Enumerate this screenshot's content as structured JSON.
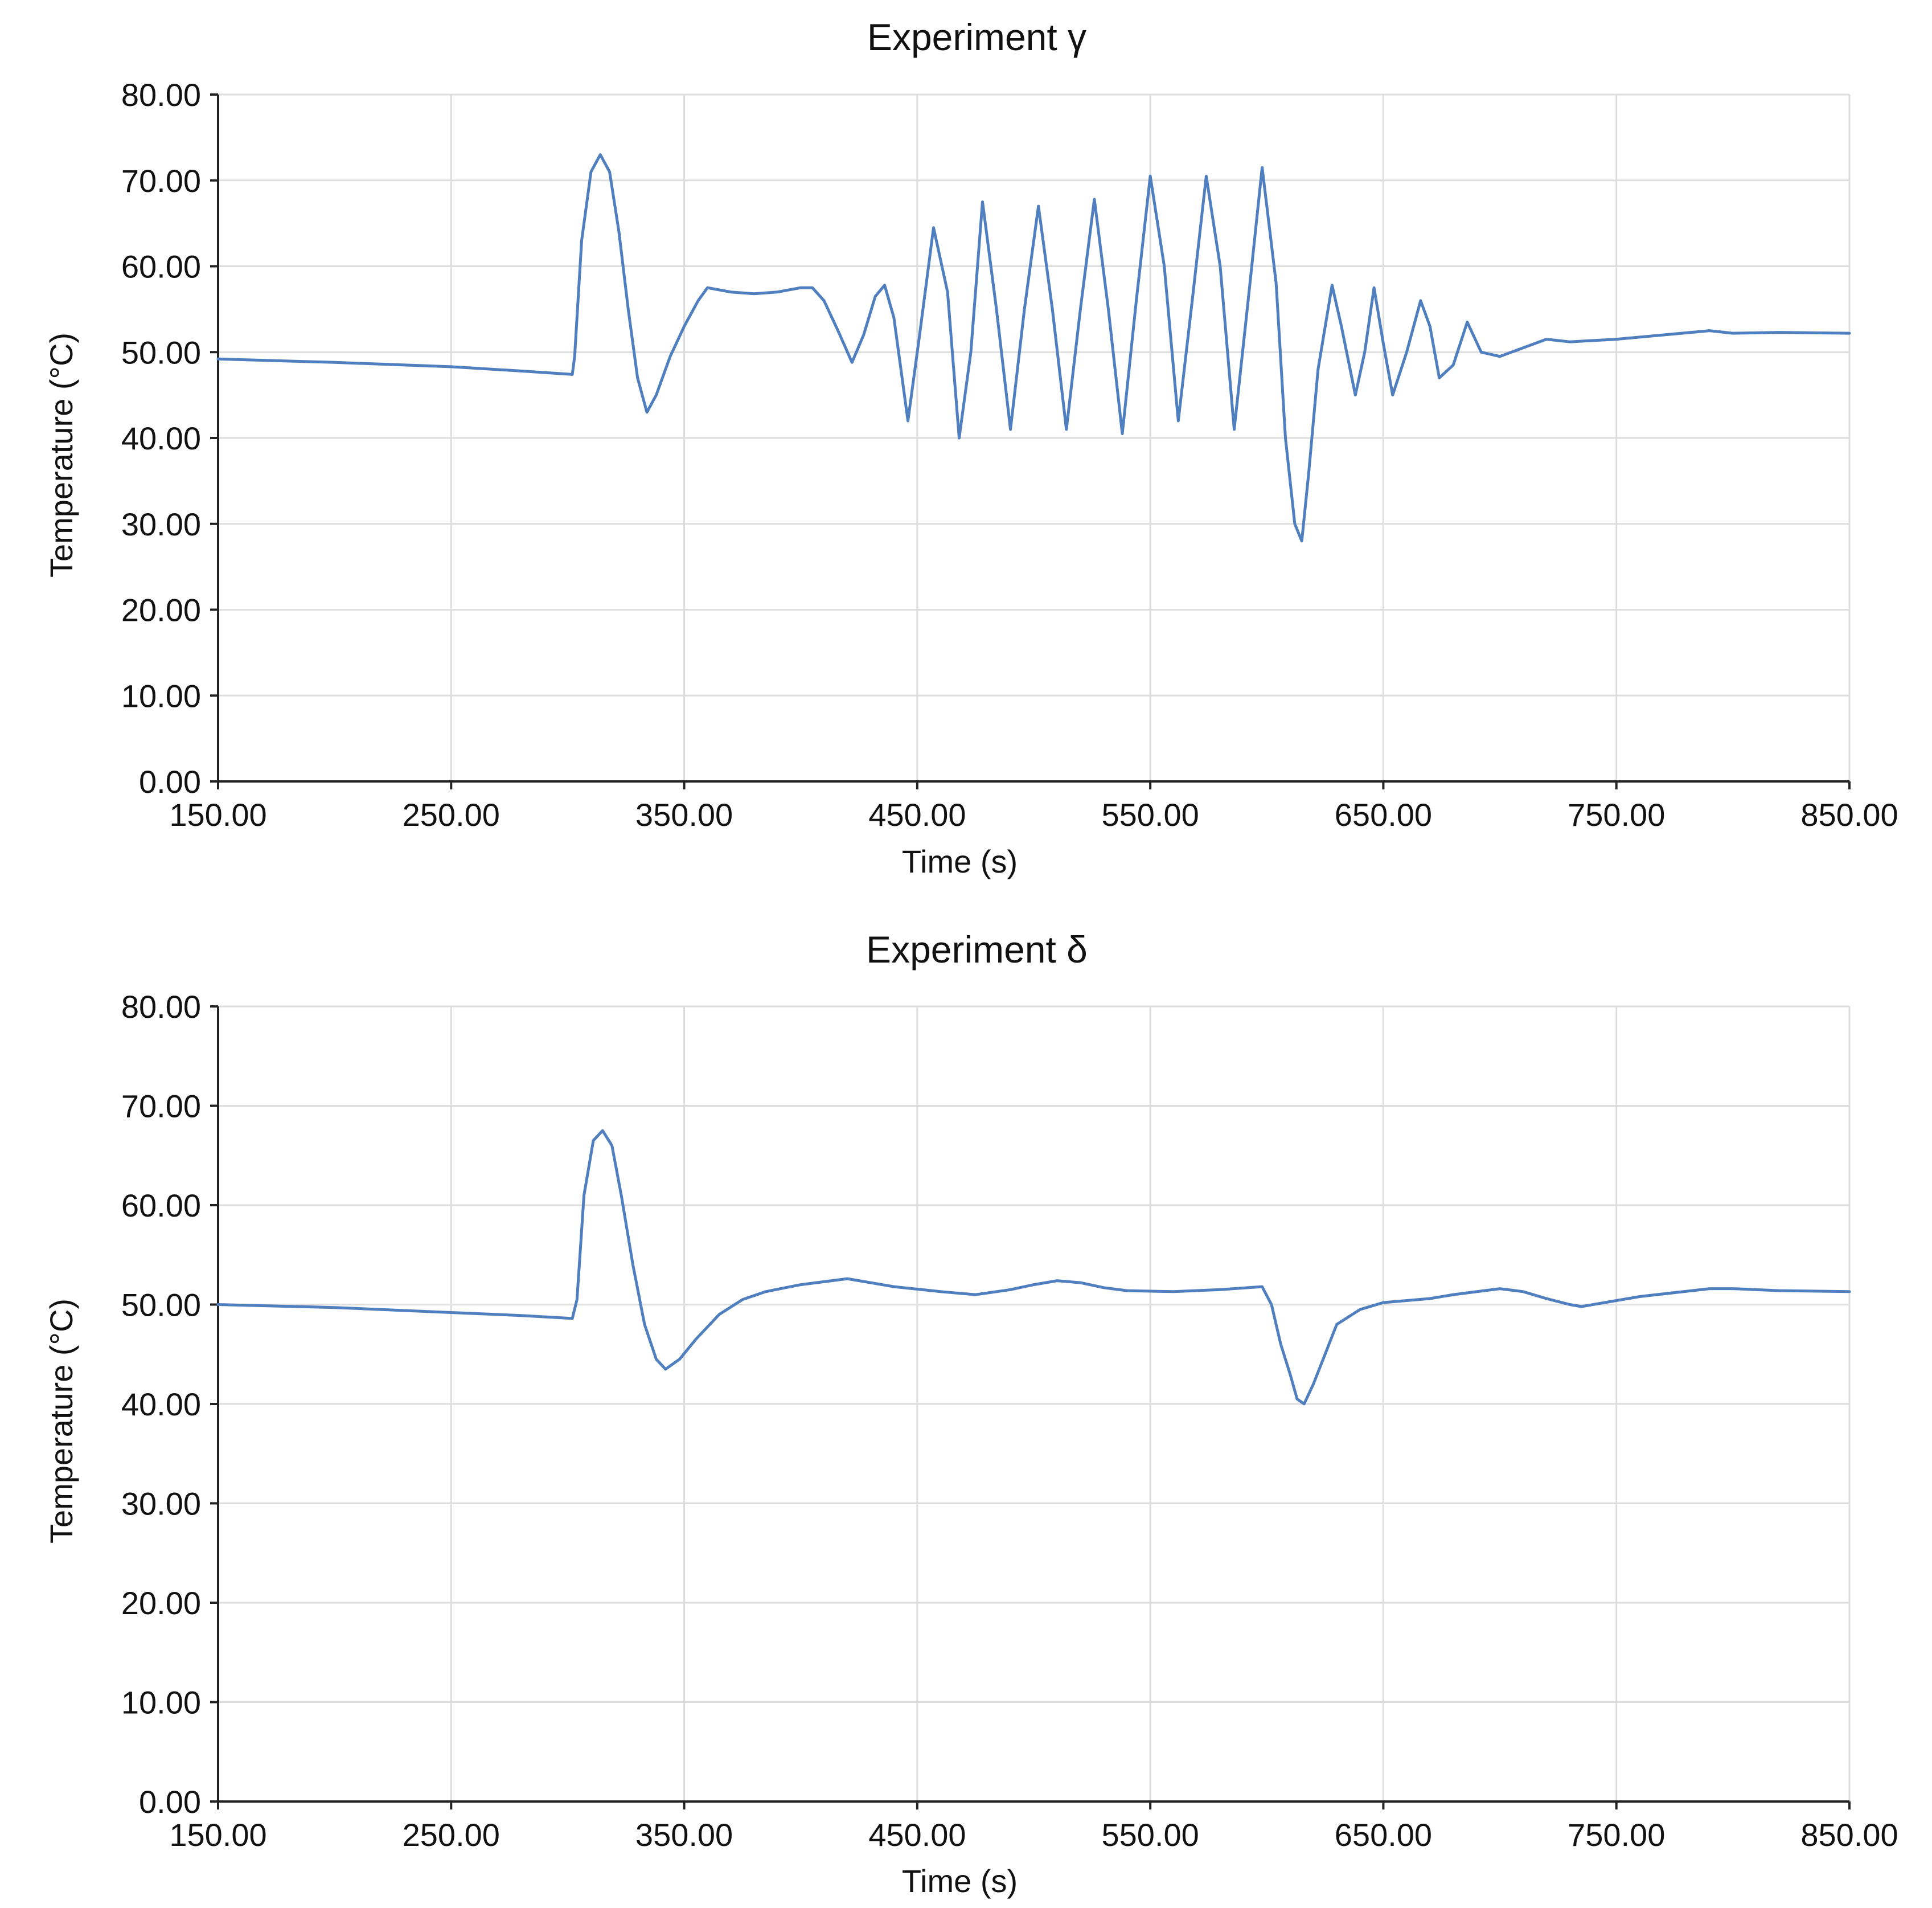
{
  "chart_data": [
    {
      "type": "line",
      "title": "Experiment γ",
      "xlabel": "Time (s)",
      "ylabel": "Temperature (°C)",
      "xlim": [
        150,
        850
      ],
      "ylim": [
        0,
        80
      ],
      "x_ticks": [
        "150.00",
        "250.00",
        "350.00",
        "450.00",
        "550.00",
        "650.00",
        "750.00",
        "850.00"
      ],
      "y_ticks": [
        "0.00",
        "10.00",
        "20.00",
        "30.00",
        "40.00",
        "50.00",
        "60.00",
        "70.00",
        "80.00"
      ],
      "grid": true,
      "color": "#4f7fbf",
      "series": [
        {
          "x": [
            150,
            200,
            250,
            280,
            302,
            303,
            306,
            310,
            314,
            318,
            322,
            326,
            330,
            334,
            338,
            344,
            350,
            356,
            360,
            370,
            380,
            390,
            400,
            405,
            410,
            416,
            422,
            427,
            432,
            436,
            440,
            446,
            451,
            457,
            463,
            468,
            473,
            478,
            484,
            490,
            496,
            502,
            508,
            514,
            520,
            526,
            532,
            538,
            544,
            550,
            556,
            562,
            568,
            574,
            580,
            586,
            592,
            598,
            604,
            608,
            612,
            615,
            618,
            622,
            628,
            632,
            638,
            642,
            646,
            650,
            654,
            660,
            666,
            670,
            674,
            680,
            686,
            692,
            700,
            710,
            720,
            730,
            750,
            790,
            800,
            820,
            850
          ],
          "y": [
            49.2,
            48.8,
            48.3,
            47.8,
            47.4,
            49.5,
            63.0,
            71.0,
            73.0,
            71.0,
            64.0,
            55.0,
            47.0,
            43.0,
            45.0,
            49.5,
            53.0,
            56.0,
            57.5,
            57.0,
            56.8,
            57.0,
            57.5,
            57.5,
            56.0,
            52.5,
            48.8,
            52.0,
            56.5,
            57.8,
            54.0,
            42.0,
            52.0,
            64.5,
            57.0,
            40.0,
            50.0,
            67.5,
            55.0,
            41.0,
            55.0,
            67.0,
            55.0,
            41.0,
            55.0,
            67.8,
            55.0,
            40.5,
            56.0,
            70.5,
            60.0,
            42.0,
            56.0,
            70.5,
            60.0,
            41.0,
            56.0,
            71.5,
            58.0,
            40.0,
            30.0,
            28.0,
            36.0,
            48.0,
            57.8,
            53.0,
            45.0,
            50.0,
            57.5,
            51.0,
            45.0,
            50.0,
            56.0,
            53.0,
            47.0,
            48.5,
            53.5,
            50.0,
            49.5,
            50.5,
            51.5,
            51.2,
            51.5,
            52.5,
            52.2,
            52.3,
            52.2
          ]
        }
      ]
    },
    {
      "type": "line",
      "title": "Experiment δ",
      "xlabel": "Time (s)",
      "ylabel": "Temperature (°C)",
      "xlim": [
        150,
        850
      ],
      "ylim": [
        0,
        80
      ],
      "x_ticks": [
        "150.00",
        "250.00",
        "350.00",
        "450.00",
        "550.00",
        "650.00",
        "750.00",
        "850.00"
      ],
      "y_ticks": [
        "0.00",
        "10.00",
        "20.00",
        "30.00",
        "40.00",
        "50.00",
        "60.00",
        "70.00",
        "80.00"
      ],
      "grid": true,
      "color": "#4f7fbf",
      "series": [
        {
          "x": [
            150,
            200,
            250,
            280,
            302,
            304,
            307,
            311,
            315,
            319,
            323,
            328,
            333,
            338,
            342,
            348,
            355,
            365,
            375,
            385,
            400,
            410,
            420,
            440,
            460,
            475,
            490,
            500,
            510,
            520,
            530,
            540,
            560,
            580,
            598,
            602,
            606,
            610,
            613,
            616,
            620,
            625,
            630,
            640,
            650,
            670,
            680,
            700,
            710,
            720,
            730,
            735,
            745,
            760,
            790,
            800,
            820,
            850
          ],
          "y": [
            50.0,
            49.7,
            49.2,
            48.9,
            48.6,
            50.5,
            61.0,
            66.5,
            67.5,
            66.0,
            61.0,
            54.0,
            48.0,
            44.5,
            43.5,
            44.5,
            46.5,
            49.0,
            50.5,
            51.3,
            52.0,
            52.3,
            52.6,
            51.8,
            51.3,
            51.0,
            51.5,
            52.0,
            52.4,
            52.2,
            51.7,
            51.4,
            51.3,
            51.5,
            51.8,
            50.0,
            46.0,
            43.0,
            40.5,
            40.0,
            42.0,
            45.0,
            48.0,
            49.5,
            50.2,
            50.6,
            51.0,
            51.6,
            51.3,
            50.6,
            50.0,
            49.8,
            50.2,
            50.8,
            51.6,
            51.6,
            51.4,
            51.3
          ]
        }
      ]
    }
  ]
}
